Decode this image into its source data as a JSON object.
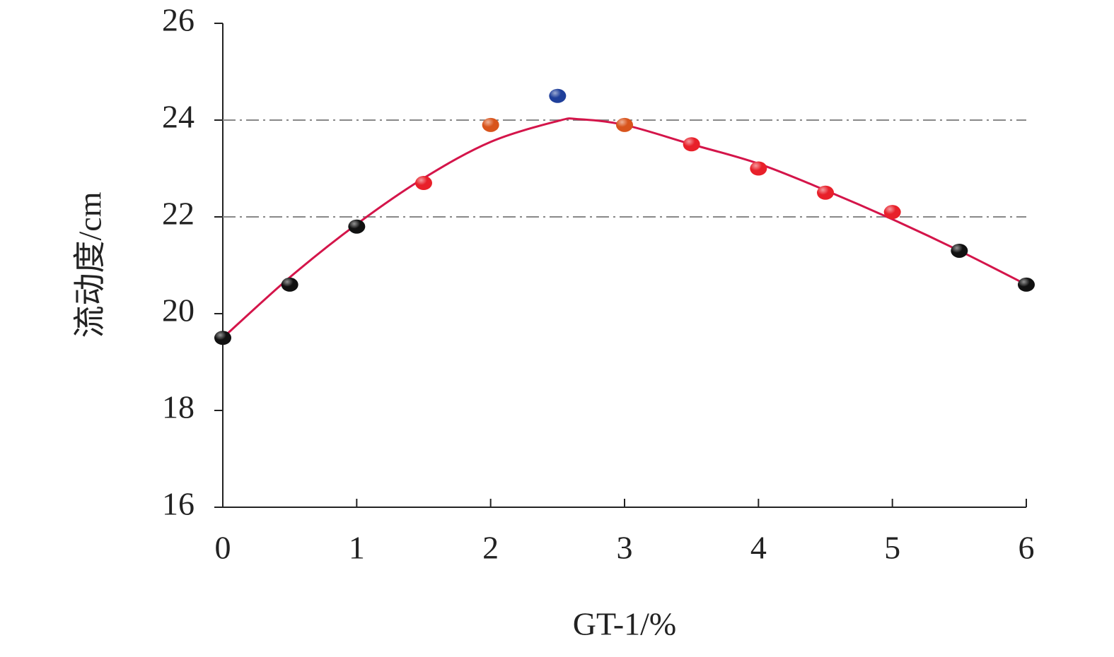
{
  "chart_data": {
    "type": "scatter",
    "x_label": "GT-1/%",
    "y_label": "流动度/cm",
    "xlim": [
      0,
      6
    ],
    "xticks": [
      0,
      1,
      2,
      3,
      4,
      5,
      6
    ],
    "ylim": [
      16,
      26
    ],
    "yticks": [
      16,
      18,
      20,
      22,
      24,
      26
    ],
    "points": {
      "x": [
        0,
        0.5,
        1,
        1.5,
        2,
        2.5,
        3,
        3.5,
        4,
        4.5,
        5,
        5.5,
        6
      ],
      "values": [
        19.5,
        20.6,
        21.8,
        22.7,
        23.9,
        24.5,
        23.9,
        23.5,
        23.0,
        22.5,
        22.1,
        21.3,
        20.6
      ],
      "colors": [
        "#111111",
        "#111111",
        "#111111",
        "#e8202a",
        "#d8541c",
        "#1f3f9a",
        "#d8541c",
        "#e8202a",
        "#e8202a",
        "#e8202a",
        "#e8202a",
        "#111111",
        "#111111"
      ]
    },
    "fit": {
      "color": "#d4154a",
      "x": [
        0,
        0.5,
        1,
        1.5,
        2,
        2.5,
        2.65,
        3,
        3.5,
        4,
        4.5,
        5,
        5.5,
        6
      ],
      "values": [
        19.5,
        20.75,
        21.85,
        22.8,
        23.55,
        23.98,
        24.02,
        23.9,
        23.5,
        23.1,
        22.55,
        21.95,
        21.3,
        20.6
      ]
    },
    "reference_lines": [
      22,
      24
    ]
  }
}
